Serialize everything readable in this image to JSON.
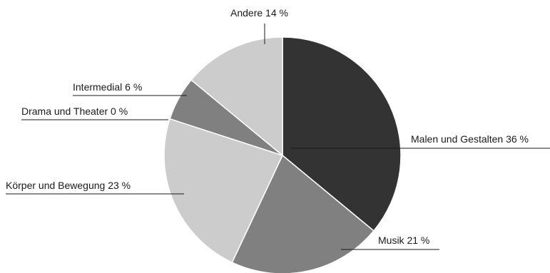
{
  "chart_data": {
    "type": "pie",
    "start": "12 o'clock",
    "direction": "clockwise",
    "slices": [
      {
        "category": "Malen und Gestalten",
        "value": 36,
        "label": "Malen und Gestalten 36 %",
        "color": "#333333"
      },
      {
        "category": "Musik",
        "value": 21,
        "label": "Musik 21 %",
        "color": "#808080"
      },
      {
        "category": "Körper und Bewegung",
        "value": 23,
        "label": "Körper und Bewegung 23 %",
        "color": "#cccccc"
      },
      {
        "category": "Drama und Theater",
        "value": 0,
        "label": "Drama und Theater 0 %",
        "color": "#999999"
      },
      {
        "category": "Intermedial",
        "value": 6,
        "label": "Intermedial 6 %",
        "color": "#808080"
      },
      {
        "category": "Andere",
        "value": 14,
        "label": "Andere 14 %",
        "color": "#cccccc"
      }
    ],
    "legend": "none",
    "labels": "external callouts with leader lines"
  }
}
